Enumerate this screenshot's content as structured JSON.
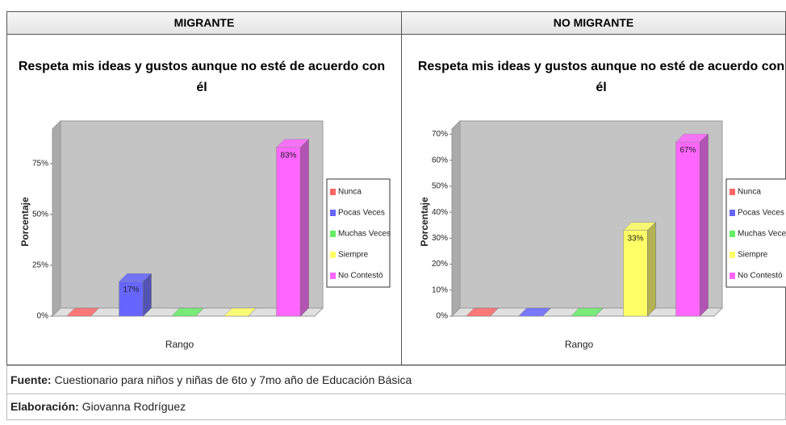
{
  "table": {
    "headers": [
      "MIGRANTE",
      "NO MIGRANTE"
    ],
    "footer": [
      {
        "label": "Fuente:",
        "text": "Cuestionario para niños y niñas de 6to y 7mo año de Educación Básica"
      },
      {
        "label": "Elaboración:",
        "text": "Giovanna Rodríguez"
      }
    ]
  },
  "chart_data": [
    {
      "type": "bar3d",
      "title": "Respeta mis ideas y gustos aunque no esté de acuerdo con él",
      "x_label": "Rango",
      "y_label": "Porcentaje",
      "categories": [
        "Nunca",
        "Pocas Veces",
        "Muchas Veces",
        "Siempre",
        "No Contestó"
      ],
      "colors": [
        "#ff6666",
        "#6666ff",
        "#66ee66",
        "#ffff66",
        "#ff66ff"
      ],
      "values": [
        0,
        17,
        0,
        0,
        83
      ],
      "value_labels": [
        null,
        "17%",
        null,
        null,
        "83%"
      ],
      "ylim": [
        0,
        92
      ],
      "yticks": [
        {
          "value": 0,
          "label": "0%"
        },
        {
          "value": 25,
          "label": "25%"
        },
        {
          "value": 50,
          "label": "50%"
        },
        {
          "value": 75,
          "label": "75%"
        }
      ],
      "legend": "right"
    },
    {
      "type": "bar3d",
      "title": "Respeta mis ideas y gustos aunque no esté de acuerdo con él",
      "x_label": "Rango",
      "y_label": "Porcentaje",
      "categories": [
        "Nunca",
        "Pocas Veces",
        "Muchas Veces",
        "Siempre",
        "No Contestó"
      ],
      "colors": [
        "#ff6666",
        "#6666ff",
        "#66ee66",
        "#ffff66",
        "#ff66ff"
      ],
      "values": [
        0,
        0,
        0,
        33,
        67
      ],
      "value_labels": [
        null,
        null,
        null,
        "33%",
        "67%"
      ],
      "ylim": [
        0,
        72
      ],
      "yticks": [
        {
          "value": 0,
          "label": "0%"
        },
        {
          "value": 10,
          "label": "10%"
        },
        {
          "value": 20,
          "label": "20%"
        },
        {
          "value": 30,
          "label": "30%"
        },
        {
          "value": 40,
          "label": "40%"
        },
        {
          "value": 50,
          "label": "50%"
        },
        {
          "value": 60,
          "label": "60%"
        },
        {
          "value": 70,
          "label": "70%"
        }
      ],
      "legend": "right"
    }
  ]
}
